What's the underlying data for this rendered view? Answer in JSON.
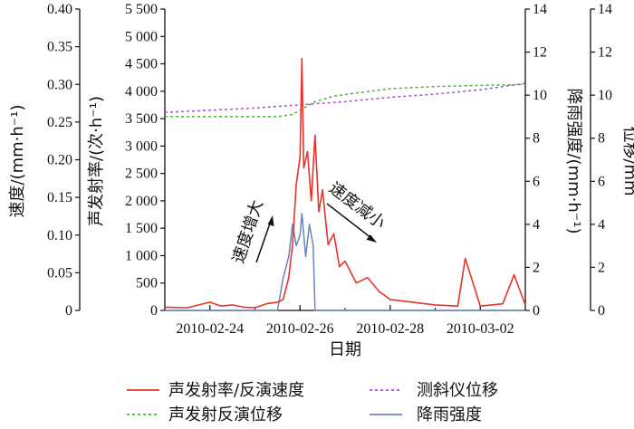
{
  "chart_data": {
    "type": "line",
    "xlabel": "日期",
    "x_ticks": [
      "2010-02-24",
      "2010-02-26",
      "2010-02-28",
      "2010-03-02"
    ],
    "xlim": [
      "2010-02-23",
      "2010-03-03"
    ],
    "axes": {
      "speed": {
        "label": "速度/(mm·h⁻¹)",
        "ylim": [
          0,
          0.4
        ],
        "ticks": [
          "0",
          "0.05",
          "0.10",
          "0.15",
          "0.20",
          "0.25",
          "0.30",
          "0.35",
          "0.40"
        ]
      },
      "ae_rate": {
        "label": "声发射率/(次·h⁻¹)",
        "ylim": [
          0,
          5500
        ],
        "ticks": [
          "0",
          "500",
          "1 000",
          "1 500",
          "2 000",
          "2 500",
          "3 000",
          "3 500",
          "4 000",
          "4 500",
          "5 000",
          "5 500"
        ]
      },
      "rain": {
        "label": "降雨强度/(mm·h⁻¹)",
        "ylim": [
          0,
          14
        ],
        "ticks": [
          "0",
          "2",
          "4",
          "6",
          "8",
          "10",
          "12",
          "14"
        ]
      },
      "displacement": {
        "label": "位移/mm",
        "ylim": [
          0,
          14
        ],
        "ticks": [
          "0",
          "2",
          "4",
          "6",
          "8",
          "10",
          "12",
          "14"
        ]
      }
    },
    "annotations": [
      "速度增大",
      "速度减小"
    ],
    "colors": {
      "ae_rate": "#e8332a",
      "inversion_disp": "#4caf3c",
      "inclinometer": "#a155c8",
      "rain": "#6a85b6"
    },
    "series": [
      {
        "name": "声发射率/反演速度",
        "axis": "ae_rate",
        "style": "solid",
        "x": [
          "2010-02-23 00:00",
          "2010-02-23 12:00",
          "2010-02-24 00:00",
          "2010-02-24 06:00",
          "2010-02-24 12:00",
          "2010-02-24 18:00",
          "2010-02-25 00:00",
          "2010-02-25 06:00",
          "2010-02-25 12:00",
          "2010-02-25 15:00",
          "2010-02-25 18:00",
          "2010-02-25 20:00",
          "2010-02-25 22:00",
          "2010-02-26 00:00",
          "2010-02-26 01:00",
          "2010-02-26 02:00",
          "2010-02-26 04:00",
          "2010-02-26 06:00",
          "2010-02-26 08:00",
          "2010-02-26 10:00",
          "2010-02-26 12:00",
          "2010-02-26 15:00",
          "2010-02-26 18:00",
          "2010-02-26 21:00",
          "2010-02-27 00:00",
          "2010-02-27 06:00",
          "2010-02-27 12:00",
          "2010-02-27 18:00",
          "2010-02-28 00:00",
          "2010-02-28 12:00",
          "2010-03-01 00:00",
          "2010-03-01 12:00",
          "2010-03-01 16:00",
          "2010-03-02 00:00",
          "2010-03-02 12:00",
          "2010-03-02 18:00",
          "2010-03-03 00:00"
        ],
        "values": [
          60,
          50,
          150,
          80,
          100,
          60,
          50,
          120,
          150,
          200,
          600,
          1200,
          2300,
          2800,
          4600,
          2600,
          2900,
          2000,
          3200,
          1800,
          2200,
          1200,
          1400,
          800,
          900,
          500,
          600,
          350,
          200,
          150,
          100,
          80,
          950,
          80,
          120,
          650,
          100
        ]
      },
      {
        "name": "声发射反演位移",
        "axis": "displacement",
        "style": "dashed",
        "x": [
          "2010-02-23 00:00",
          "2010-02-24 00:00",
          "2010-02-25 00:00",
          "2010-02-25 12:00",
          "2010-02-25 20:00",
          "2010-02-26 02:00",
          "2010-02-26 08:00",
          "2010-02-26 18:00",
          "2010-02-27 06:00",
          "2010-02-28 00:00",
          "2010-03-01 00:00",
          "2010-03-02 00:00",
          "2010-03-03 00:00"
        ],
        "values": [
          9.0,
          9.0,
          9.0,
          9.0,
          9.1,
          9.4,
          9.7,
          9.95,
          10.1,
          10.3,
          10.4,
          10.45,
          10.5
        ]
      },
      {
        "name": "测斜仪位移",
        "axis": "displacement",
        "style": "dashed",
        "x": [
          "2010-02-23 00:00",
          "2010-02-24 00:00",
          "2010-02-25 00:00",
          "2010-02-26 00:00",
          "2010-02-27 00:00",
          "2010-02-28 00:00",
          "2010-03-01 00:00",
          "2010-03-02 00:00",
          "2010-03-03 00:00"
        ],
        "values": [
          9.2,
          9.3,
          9.4,
          9.55,
          9.7,
          9.9,
          10.05,
          10.25,
          10.55
        ]
      },
      {
        "name": "降雨强度",
        "axis": "rain",
        "style": "solid",
        "x": [
          "2010-02-23 00:00",
          "2010-02-25 00:00",
          "2010-02-25 12:00",
          "2010-02-25 15:00",
          "2010-02-25 18:00",
          "2010-02-25 20:00",
          "2010-02-25 22:00",
          "2010-02-26 00:00",
          "2010-02-26 01:00",
          "2010-02-26 03:00",
          "2010-02-26 05:00",
          "2010-02-26 07:00",
          "2010-02-26 08:00",
          "2010-02-26 12:00",
          "2010-03-03 00:00"
        ],
        "values": [
          0,
          0,
          0,
          1.5,
          2.5,
          4,
          3,
          3.5,
          4.5,
          2.5,
          4,
          3,
          0,
          0,
          0
        ]
      }
    ],
    "legend": {
      "placement": "bottom",
      "items": [
        {
          "label": "声发射率/反演速度",
          "color": "#e8332a",
          "style": "solid"
        },
        {
          "label": "测斜仪位移",
          "color": "#a155c8",
          "style": "dashed"
        },
        {
          "label": "声发射反演位移",
          "color": "#4caf3c",
          "style": "dashed"
        },
        {
          "label": "降雨强度",
          "color": "#6a85b6",
          "style": "solid"
        }
      ]
    }
  }
}
